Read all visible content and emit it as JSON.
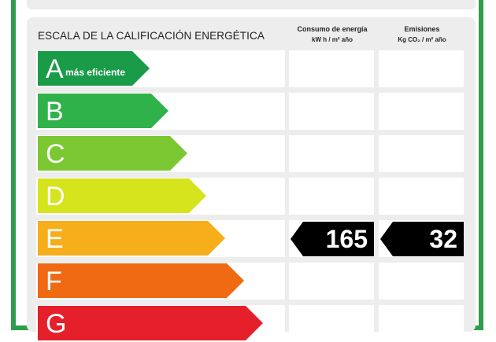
{
  "header": {
    "title": "ESCALA DE LA CALIFICACIÓN ENERGÉTICA",
    "col_energy": {
      "label": "Consumo de energía",
      "unit": "kW h / m² año"
    },
    "col_emissions": {
      "label": "Emisiones",
      "unit": "Kg CO₂ / m² año"
    }
  },
  "ratings": [
    {
      "letter": "A",
      "note": "más eficiente",
      "color": "#1a9b48"
    },
    {
      "letter": "B",
      "color": "#2fb24a"
    },
    {
      "letter": "C",
      "color": "#7cc832"
    },
    {
      "letter": "D",
      "color": "#d5e41c"
    },
    {
      "letter": "E",
      "color": "#f6ae1a"
    },
    {
      "letter": "F",
      "color": "#ef6a12"
    },
    {
      "letter": "G",
      "color": "#e5202b"
    }
  ],
  "result": {
    "rating": "E",
    "energy_value": "165",
    "emissions_value": "32",
    "color": "#000000"
  }
}
